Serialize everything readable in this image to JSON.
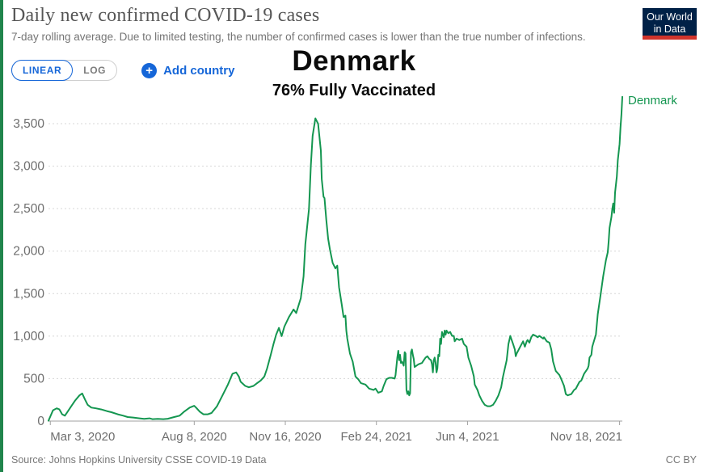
{
  "header": {
    "title": "Daily new confirmed COVID-19 cases",
    "subtitle": "7-day rolling average. Due to limited testing, the number of confirmed cases is lower than the true number of infections.",
    "logo_line1": "Our World",
    "logo_line2": "in Data"
  },
  "controls": {
    "linear_label": "LINEAR",
    "log_label": "LOG",
    "add_country_label": "Add country",
    "plus_icon_glyph": "+"
  },
  "overlay": {
    "country_title": "Denmark",
    "vaccination_note": "76% Fully Vaccinated"
  },
  "footer": {
    "source": "Source: Johns Hopkins University CSSE COVID-19 Data",
    "license": "CC BY"
  },
  "colors": {
    "accent": "#1566d8",
    "green": "#149650",
    "strip": "#20854c",
    "navy": "#002147",
    "red": "#d0342c",
    "txt-title": "#565656",
    "txt-sub": "#757575",
    "txt-axis": "#6e6e6e",
    "grid": "#d7d7d7",
    "txt-footer": "#767676",
    "axis-line": "#a0a0a0"
  },
  "chart_data": {
    "type": "line",
    "title": "Daily new confirmed COVID-19 cases — Denmark",
    "series_label": "Denmark",
    "line_color": "#149650",
    "x_unit": "days since Mar 3, 2020",
    "x_day0": "Mar 3, 2020",
    "xlim_days": [
      -2,
      628
    ],
    "ylim": [
      0,
      3850
    ],
    "grid": "horizontal dashed",
    "legend_position": "right end of line",
    "y_ticks": [
      0,
      500,
      1000,
      1500,
      2000,
      2500,
      3000,
      3500
    ],
    "x_tick_labels": [
      "Mar 3, 2020",
      "Aug 8, 2020",
      "Nov 16, 2020",
      "Feb 24, 2021",
      "Jun 4, 2021",
      "Nov 18, 2021"
    ],
    "x_tick_days": [
      0,
      158,
      258,
      358,
      458,
      625
    ],
    "points": [
      [
        -2,
        5
      ],
      [
        3,
        127
      ],
      [
        7,
        150
      ],
      [
        10,
        137
      ],
      [
        13,
        80
      ],
      [
        16,
        64
      ],
      [
        19,
        111
      ],
      [
        23,
        175
      ],
      [
        27,
        239
      ],
      [
        32,
        302
      ],
      [
        35,
        325
      ],
      [
        38,
        255
      ],
      [
        41,
        191
      ],
      [
        43,
        175
      ],
      [
        45,
        159
      ],
      [
        50,
        150
      ],
      [
        56,
        137
      ],
      [
        62,
        118
      ],
      [
        67,
        105
      ],
      [
        74,
        80
      ],
      [
        80,
        64
      ],
      [
        85,
        48
      ],
      [
        91,
        42
      ],
      [
        98,
        32
      ],
      [
        103,
        26
      ],
      [
        109,
        32
      ],
      [
        112,
        23
      ],
      [
        118,
        26
      ],
      [
        124,
        23
      ],
      [
        129,
        28
      ],
      [
        136,
        48
      ],
      [
        142,
        64
      ],
      [
        147,
        111
      ],
      [
        153,
        159
      ],
      [
        158,
        180
      ],
      [
        160,
        159
      ],
      [
        164,
        111
      ],
      [
        168,
        80
      ],
      [
        173,
        80
      ],
      [
        177,
        95
      ],
      [
        183,
        175
      ],
      [
        189,
        302
      ],
      [
        195,
        430
      ],
      [
        200,
        557
      ],
      [
        204,
        573
      ],
      [
        207,
        525
      ],
      [
        209,
        462
      ],
      [
        214,
        414
      ],
      [
        218,
        398
      ],
      [
        223,
        414
      ],
      [
        227,
        446
      ],
      [
        231,
        477
      ],
      [
        235,
        525
      ],
      [
        238,
        620
      ],
      [
        242,
        780
      ],
      [
        245,
        907
      ],
      [
        248,
        1018
      ],
      [
        251,
        1097
      ],
      [
        254,
        1000
      ],
      [
        257,
        1113
      ],
      [
        262,
        1224
      ],
      [
        267,
        1313
      ],
      [
        270,
        1272
      ],
      [
        275,
        1447
      ],
      [
        278,
        1702
      ],
      [
        280,
        2083
      ],
      [
        284,
        2496
      ],
      [
        286,
        3005
      ],
      [
        288,
        3355
      ],
      [
        291,
        3562
      ],
      [
        294,
        3499
      ],
      [
        297,
        3181
      ],
      [
        298,
        2847
      ],
      [
        300,
        2640
      ],
      [
        301,
        2624
      ],
      [
        303,
        2370
      ],
      [
        305,
        2147
      ],
      [
        307,
        2020
      ],
      [
        310,
        1861
      ],
      [
        313,
        1797
      ],
      [
        315,
        1829
      ],
      [
        317,
        1574
      ],
      [
        320,
        1368
      ],
      [
        322,
        1224
      ],
      [
        324,
        1240
      ],
      [
        325,
        1065
      ],
      [
        326,
        970
      ],
      [
        329,
        795
      ],
      [
        332,
        700
      ],
      [
        335,
        525
      ],
      [
        338,
        493
      ],
      [
        341,
        446
      ],
      [
        346,
        430
      ],
      [
        350,
        382
      ],
      [
        355,
        366
      ],
      [
        357,
        382
      ],
      [
        360,
        334
      ],
      [
        364,
        350
      ],
      [
        366,
        414
      ],
      [
        369,
        493
      ],
      [
        372,
        509
      ],
      [
        375,
        509
      ],
      [
        378,
        500
      ],
      [
        379,
        541
      ],
      [
        381,
        748
      ],
      [
        382,
        827
      ],
      [
        383,
        716
      ],
      [
        384,
        780
      ],
      [
        385,
        684
      ],
      [
        386,
        700
      ],
      [
        388,
        652
      ],
      [
        389,
        811
      ],
      [
        390,
        795
      ],
      [
        391,
        366
      ],
      [
        392,
        318
      ],
      [
        393,
        350
      ],
      [
        394,
        302
      ],
      [
        395,
        327
      ],
      [
        396,
        811
      ],
      [
        397,
        843
      ],
      [
        398,
        780
      ],
      [
        399,
        732
      ],
      [
        400,
        636
      ],
      [
        402,
        652
      ],
      [
        404,
        668
      ],
      [
        408,
        684
      ],
      [
        410,
        716
      ],
      [
        412,
        748
      ],
      [
        414,
        763
      ],
      [
        416,
        732
      ],
      [
        418,
        716
      ],
      [
        419,
        668
      ],
      [
        420,
        573
      ],
      [
        421,
        716
      ],
      [
        422,
        748
      ],
      [
        423,
        684
      ],
      [
        424,
        573
      ],
      [
        425,
        620
      ],
      [
        426,
        780
      ],
      [
        427,
        763
      ],
      [
        428,
        970
      ],
      [
        429,
        907
      ],
      [
        430,
        1049
      ],
      [
        432,
        986
      ],
      [
        433,
        1065
      ],
      [
        434,
        1018
      ],
      [
        435,
        1065
      ],
      [
        437,
        1034
      ],
      [
        439,
        1049
      ],
      [
        441,
        1002
      ],
      [
        443,
        1002
      ],
      [
        444,
        939
      ],
      [
        446,
        970
      ],
      [
        449,
        954
      ],
      [
        452,
        970
      ],
      [
        454,
        907
      ],
      [
        457,
        875
      ],
      [
        459,
        748
      ],
      [
        462,
        652
      ],
      [
        465,
        525
      ],
      [
        466,
        430
      ],
      [
        469,
        366
      ],
      [
        471,
        302
      ],
      [
        474,
        239
      ],
      [
        477,
        191
      ],
      [
        480,
        175
      ],
      [
        483,
        175
      ],
      [
        486,
        191
      ],
      [
        489,
        239
      ],
      [
        492,
        302
      ],
      [
        495,
        398
      ],
      [
        497,
        525
      ],
      [
        501,
        716
      ],
      [
        503,
        907
      ],
      [
        505,
        1002
      ],
      [
        506,
        970
      ],
      [
        508,
        907
      ],
      [
        510,
        843
      ],
      [
        511,
        763
      ],
      [
        512,
        795
      ],
      [
        515,
        858
      ],
      [
        519,
        939
      ],
      [
        520,
        907
      ],
      [
        521,
        875
      ],
      [
        523,
        939
      ],
      [
        524,
        954
      ],
      [
        526,
        923
      ],
      [
        528,
        986
      ],
      [
        530,
        1018
      ],
      [
        533,
        1002
      ],
      [
        535,
        986
      ],
      [
        537,
        1002
      ],
      [
        541,
        970
      ],
      [
        542,
        986
      ],
      [
        545,
        939
      ],
      [
        548,
        923
      ],
      [
        550,
        843
      ],
      [
        552,
        700
      ],
      [
        555,
        589
      ],
      [
        559,
        541
      ],
      [
        561,
        493
      ],
      [
        564,
        414
      ],
      [
        566,
        318
      ],
      [
        568,
        302
      ],
      [
        572,
        318
      ],
      [
        575,
        366
      ],
      [
        577,
        381
      ],
      [
        581,
        462
      ],
      [
        583,
        477
      ],
      [
        586,
        557
      ],
      [
        590,
        620
      ],
      [
        591,
        652
      ],
      [
        592,
        748
      ],
      [
        594,
        780
      ],
      [
        595,
        875
      ],
      [
        599,
        1018
      ],
      [
        601,
        1257
      ],
      [
        604,
        1479
      ],
      [
        607,
        1702
      ],
      [
        610,
        1893
      ],
      [
        612,
        1988
      ],
      [
        613,
        2115
      ],
      [
        614,
        2274
      ],
      [
        616,
        2401
      ],
      [
        617,
        2497
      ],
      [
        618,
        2561
      ],
      [
        619,
        2450
      ],
      [
        620,
        2688
      ],
      [
        622,
        2879
      ],
      [
        623,
        3069
      ],
      [
        625,
        3260
      ],
      [
        626,
        3451
      ],
      [
        627,
        3610
      ],
      [
        628,
        3816
      ]
    ]
  }
}
